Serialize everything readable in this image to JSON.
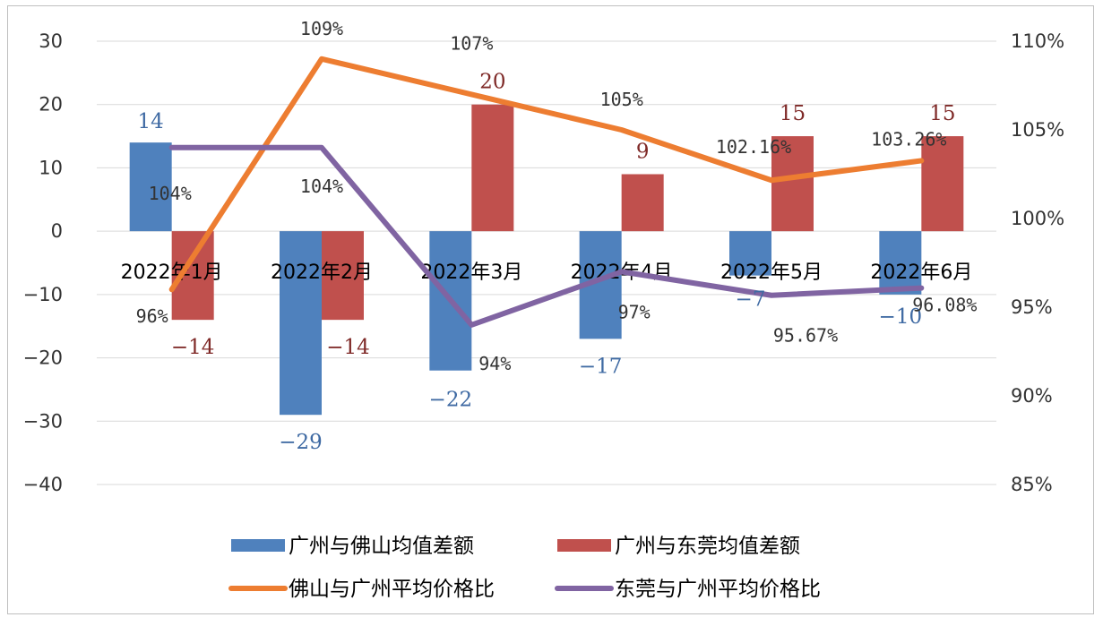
{
  "chart_data": {
    "type": "bar",
    "categories": [
      "2022年1月",
      "2022年2月",
      "2022年3月",
      "2022年4月",
      "2022年5月",
      "2022年6月"
    ],
    "y_left": {
      "range": [
        -40,
        30
      ],
      "ticks": [
        "30",
        "20",
        "10",
        "0",
        "-10",
        "-20",
        "-30",
        "-40"
      ]
    },
    "y_right": {
      "range": [
        0.85,
        1.1
      ],
      "ticks": [
        "110%",
        "105%",
        "100%",
        "95%",
        "90%",
        "85%"
      ]
    },
    "grid": true,
    "legend_position": "bottom",
    "bar_series": [
      {
        "name": "广州与佛山均值差额",
        "color": "#4f81bd",
        "label_color": "#3f6aa3",
        "values": [
          14,
          -29,
          -22,
          -17,
          -7,
          -10
        ],
        "labels": [
          "14",
          "-29",
          "-22",
          "-17",
          "-7",
          "-10"
        ]
      },
      {
        "name": "广州与东莞均值差额",
        "color": "#c0504d",
        "label_color": "#7f2a28",
        "values": [
          -14,
          -14,
          20,
          9,
          15,
          15
        ],
        "labels": [
          "-14",
          "-14",
          "20",
          "9",
          "15",
          "15"
        ]
      }
    ],
    "line_series": [
      {
        "name": "佛山与广州平均价格比",
        "color": "#ed7d31",
        "values": [
          0.96,
          1.09,
          1.07,
          1.05,
          1.0216,
          1.0326
        ],
        "labels": [
          "96%",
          "109%",
          "107%",
          "105%",
          "102.16%",
          "103.26%"
        ]
      },
      {
        "name": "东莞与广州平均价格比",
        "color": "#8064a2",
        "values": [
          1.04,
          1.04,
          0.94,
          0.97,
          0.9567,
          0.9608
        ],
        "labels": [
          "104%",
          "104%",
          "94%",
          "97%",
          "95.67%",
          "96.08%"
        ]
      }
    ]
  }
}
